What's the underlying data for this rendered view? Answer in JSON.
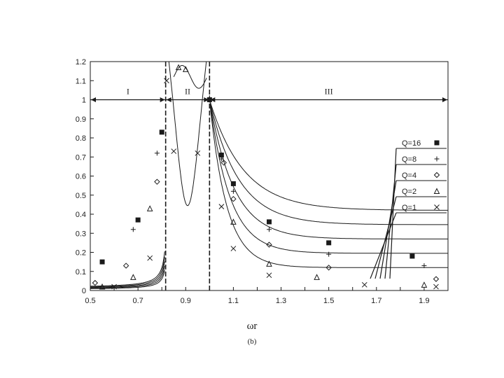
{
  "chart_data": {
    "type": "line",
    "xlabel": "ωr",
    "sublabel": "(b)",
    "xlim": [
      0.5,
      2.0
    ],
    "ylim": [
      0,
      1.2
    ],
    "xticks": [
      "0.5",
      "0.7",
      "0.9",
      "1.1",
      "1.3",
      "1.5",
      "1.7",
      "1.9"
    ],
    "yticks": [
      "0",
      "0.1",
      "0.2",
      "0.3",
      "0.4",
      "0.5",
      "0.6",
      "0.7",
      "0.8",
      "0.9",
      "1",
      "1.1",
      "1.2"
    ],
    "grid": false,
    "legend_position": "right",
    "regions": [
      {
        "label": "I",
        "x_from": 0.5,
        "x_to": 0.816
      },
      {
        "label": "II",
        "x_from": 0.816,
        "x_to": 1.0
      },
      {
        "label": "III",
        "x_from": 1.0,
        "x_to": 2.0
      }
    ],
    "region_boundaries": [
      0.816,
      1.0
    ],
    "series": [
      {
        "name": "Q=16",
        "marker": "filled-square",
        "points": [
          [
            0.55,
            0.15
          ],
          [
            0.7,
            0.37
          ],
          [
            0.8,
            0.83
          ],
          [
            1.0,
            1.0
          ],
          [
            1.05,
            0.71
          ],
          [
            1.1,
            0.56
          ],
          [
            1.25,
            0.36
          ],
          [
            1.5,
            0.25
          ],
          [
            1.85,
            0.18
          ]
        ]
      },
      {
        "name": "Q=8",
        "marker": "plus",
        "points": [
          [
            0.68,
            0.32
          ],
          [
            0.78,
            0.72
          ],
          [
            1.0,
            1.01
          ],
          [
            1.05,
            0.69
          ],
          [
            1.1,
            0.52
          ],
          [
            1.25,
            0.32
          ],
          [
            1.5,
            0.19
          ],
          [
            1.9,
            0.13
          ]
        ]
      },
      {
        "name": "Q=4",
        "marker": "diamond",
        "points": [
          [
            0.52,
            0.04
          ],
          [
            0.65,
            0.13
          ],
          [
            0.78,
            0.57
          ],
          [
            1.0,
            1.0
          ],
          [
            1.06,
            0.67
          ],
          [
            1.1,
            0.48
          ],
          [
            1.25,
            0.24
          ],
          [
            1.5,
            0.12
          ],
          [
            1.95,
            0.06
          ]
        ]
      },
      {
        "name": "Q=2",
        "marker": "triangle",
        "points": [
          [
            0.55,
            0.02
          ],
          [
            0.68,
            0.07
          ],
          [
            0.75,
            0.43
          ],
          [
            0.87,
            1.17
          ],
          [
            0.9,
            1.16
          ],
          [
            1.1,
            0.36
          ],
          [
            1.25,
            0.14
          ],
          [
            1.45,
            0.07
          ],
          [
            1.9,
            0.03
          ]
        ]
      },
      {
        "name": "Q=1",
        "marker": "cross",
        "points": [
          [
            0.6,
            0.02
          ],
          [
            0.75,
            0.17
          ],
          [
            0.82,
            1.1
          ],
          [
            0.85,
            0.73
          ],
          [
            0.95,
            0.72
          ],
          [
            1.05,
            0.44
          ],
          [
            1.1,
            0.22
          ],
          [
            1.25,
            0.08
          ],
          [
            1.65,
            0.03
          ],
          [
            1.95,
            0.02
          ]
        ]
      }
    ]
  },
  "colors": {
    "ink": "#1a1a1a",
    "background": "#ffffff"
  }
}
